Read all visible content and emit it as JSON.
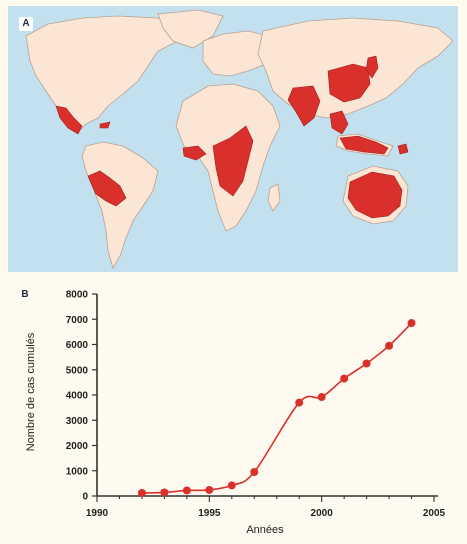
{
  "panel_a": {
    "label": "A",
    "colors": {
      "ocean": "#c3e0ef",
      "land": "#fbe6d6",
      "endemic": "#d9302b",
      "border": "#b9a090"
    }
  },
  "panel_b": {
    "label": "B"
  },
  "chart_data": {
    "type": "line",
    "title": "",
    "xlabel": "Années",
    "ylabel": "Nombre de cas cumulés",
    "xlim": [
      1990,
      2005
    ],
    "ylim": [
      0,
      8000
    ],
    "xticks": [
      1990,
      1995,
      2000,
      2005
    ],
    "yticks": [
      0,
      1000,
      2000,
      3000,
      4000,
      5000,
      6000,
      7000,
      8000
    ],
    "series": [
      {
        "color": "#d9302b",
        "x": [
          1992,
          1993,
          1994,
          1995,
          1996,
          1997,
          1999,
          2000,
          2001,
          2002,
          2003,
          2004
        ],
        "y": [
          120,
          140,
          220,
          240,
          420,
          950,
          3700,
          3920,
          4650,
          5250,
          5950,
          6850
        ]
      }
    ],
    "grid": false,
    "legend": "none"
  }
}
